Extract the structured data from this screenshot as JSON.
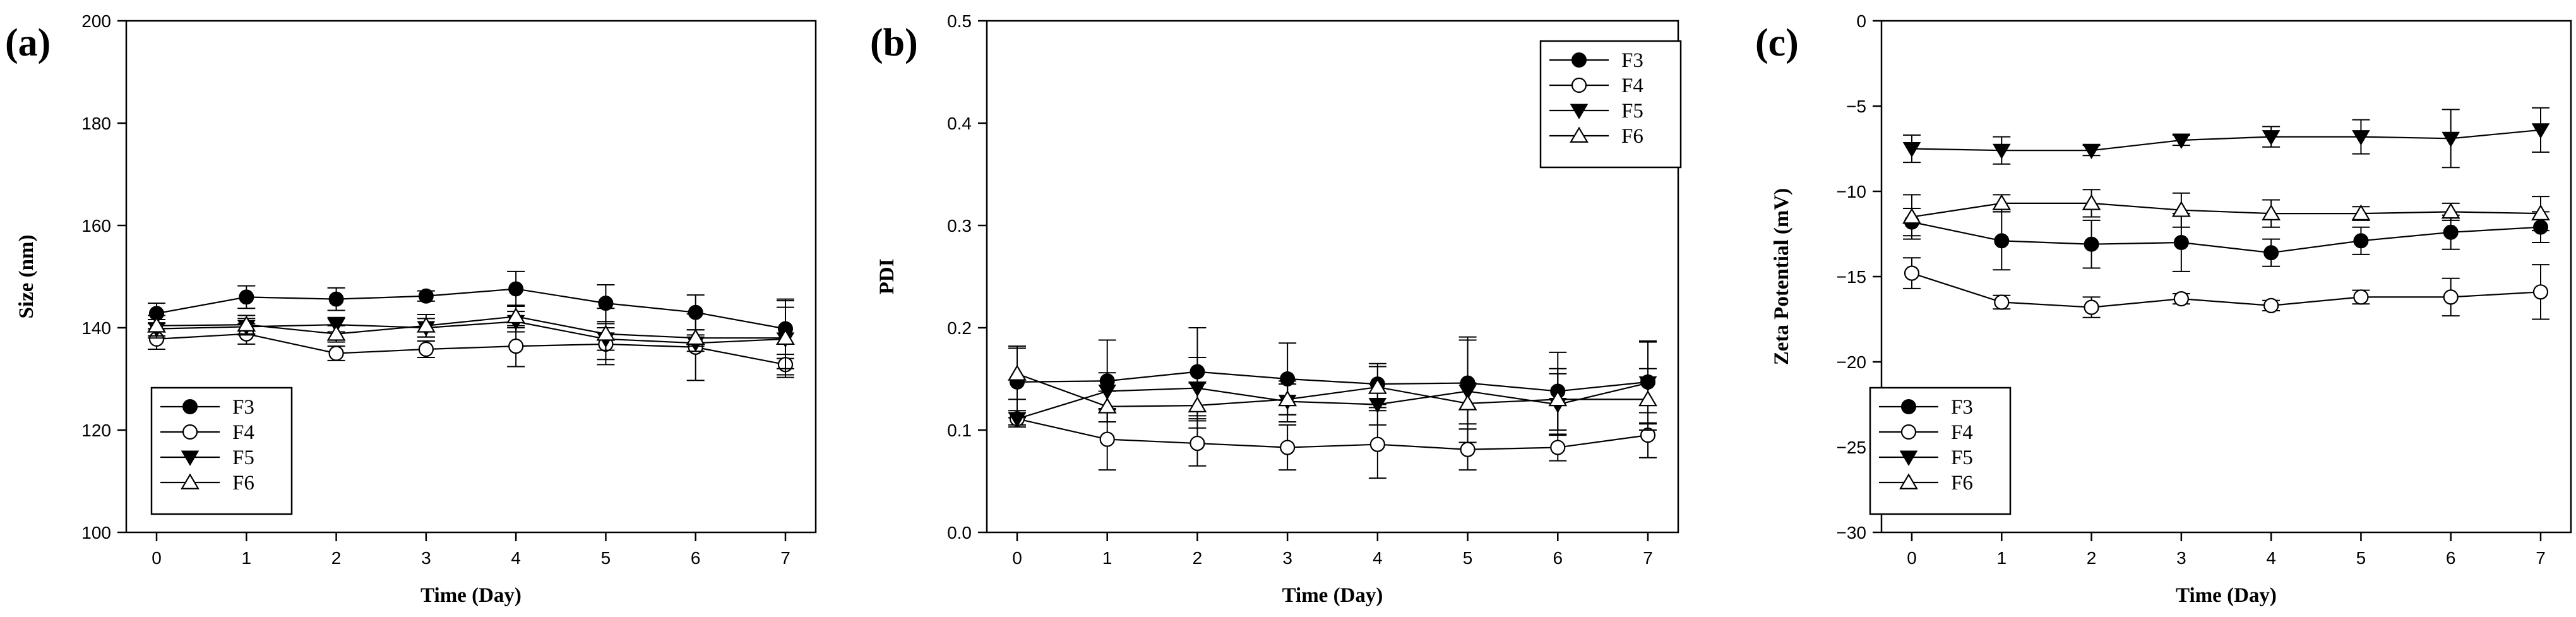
{
  "chart_data": [
    {
      "type": "line",
      "panel_label": "(a)",
      "xlabel": "Time (Day)",
      "ylabel": "Size (nm)",
      "xlim": [
        0,
        7
      ],
      "ylim": [
        100,
        200
      ],
      "x_ticks": [
        0,
        1,
        2,
        3,
        4,
        5,
        6,
        7
      ],
      "y_ticks": [
        100,
        120,
        140,
        160,
        180,
        200
      ],
      "legend_position": "bottom-left",
      "x": [
        0,
        1,
        2,
        3,
        4,
        5,
        6,
        7
      ],
      "series": [
        {
          "name": "F3",
          "marker": "circle-filled",
          "values": [
            142.8,
            146.0,
            145.6,
            146.2,
            147.6,
            144.8,
            143.0,
            139.8
          ],
          "errors": [
            2.0,
            2.2,
            2.2,
            1.0,
            3.4,
            3.6,
            3.4,
            5.8
          ]
        },
        {
          "name": "F4",
          "marker": "circle-open",
          "values": [
            137.8,
            138.8,
            135.0,
            135.8,
            136.4,
            136.8,
            136.2,
            132.8
          ],
          "errors": [
            2.0,
            2.0,
            1.4,
            1.6,
            4.0,
            4.0,
            6.5,
            2.0
          ]
        },
        {
          "name": "F5",
          "marker": "triangle-down",
          "values": [
            139.8,
            140.2,
            140.6,
            140.0,
            141.2,
            137.8,
            137.0,
            137.8
          ],
          "errors": [
            1.8,
            1.6,
            1.4,
            1.8,
            2.0,
            2.2,
            1.6,
            7.5
          ]
        },
        {
          "name": "F6",
          "marker": "triangle-up-open",
          "values": [
            140.4,
            140.6,
            138.8,
            140.4,
            142.2,
            138.8,
            138.0,
            138.0
          ],
          "errors": [
            2.0,
            1.8,
            1.6,
            2.2,
            2.2,
            5.0,
            1.6,
            6.0
          ]
        }
      ]
    },
    {
      "type": "line",
      "panel_label": "(b)",
      "xlabel": "Time (Day)",
      "ylabel": "PDI",
      "xlim": [
        0,
        7
      ],
      "ylim": [
        0.0,
        0.5
      ],
      "x_ticks": [
        0,
        1,
        2,
        3,
        4,
        5,
        6,
        7
      ],
      "y_ticks": [
        "0.0",
        "0.1",
        "0.2",
        "0.3",
        "0.4",
        "0.5"
      ],
      "legend_position": "top-right",
      "x": [
        0,
        1,
        2,
        3,
        4,
        5,
        6,
        7
      ],
      "series": [
        {
          "name": "F3",
          "marker": "circle-filled",
          "values": [
            0.147,
            0.148,
            0.157,
            0.15,
            0.145,
            0.146,
            0.138,
            0.147
          ],
          "errors": [
            0.035,
            0.04,
            0.043,
            0.035,
            0.02,
            0.045,
            0.038,
            0.04
          ]
        },
        {
          "name": "F4",
          "marker": "circle-open",
          "values": [
            0.111,
            0.091,
            0.087,
            0.083,
            0.086,
            0.081,
            0.083,
            0.095
          ],
          "errors": [
            0.006,
            0.03,
            0.022,
            0.022,
            0.033,
            0.02,
            0.013,
            0.022
          ]
        },
        {
          "name": "F5",
          "marker": "triangle-down",
          "values": [
            0.111,
            0.138,
            0.141,
            0.128,
            0.125,
            0.138,
            0.125,
            0.146
          ],
          "errors": [
            0.008,
            0.018,
            0.03,
            0.02,
            0.02,
            0.05,
            0.03,
            0.04
          ]
        },
        {
          "name": "F6",
          "marker": "triangle-up-open",
          "values": [
            0.155,
            0.123,
            0.124,
            0.13,
            0.142,
            0.126,
            0.13,
            0.13
          ],
          "errors": [
            0.025,
            0.015,
            0.022,
            0.015,
            0.02,
            0.02,
            0.03,
            0.03
          ]
        }
      ]
    },
    {
      "type": "line",
      "panel_label": "(c)",
      "xlabel": "Time (Day)",
      "ylabel": "Zeta Potential (mV)",
      "xlim": [
        0,
        7
      ],
      "ylim": [
        -30,
        0
      ],
      "x_ticks": [
        0,
        1,
        2,
        3,
        4,
        5,
        6,
        7
      ],
      "y_ticks": [
        -30,
        -25,
        -20,
        -15,
        -10,
        -5,
        0
      ],
      "y_tick_labels": [
        "−30",
        "−25",
        "−20",
        "−15",
        "−10",
        "−5",
        "0"
      ],
      "legend_position": "bottom-left",
      "x": [
        0,
        1,
        2,
        3,
        4,
        5,
        6,
        7
      ],
      "series": [
        {
          "name": "F3",
          "marker": "circle-filled",
          "values": [
            -11.8,
            -12.9,
            -13.1,
            -13.0,
            -13.6,
            -12.9,
            -12.4,
            -12.1
          ],
          "errors": [
            0.8,
            1.7,
            1.4,
            1.7,
            0.8,
            0.8,
            1.0,
            0.9
          ]
        },
        {
          "name": "F4",
          "marker": "circle-open",
          "values": [
            -14.8,
            -16.5,
            -16.8,
            -16.3,
            -16.7,
            -16.2,
            -16.2,
            -15.9
          ],
          "errors": [
            0.9,
            0.4,
            0.6,
            0.3,
            0.3,
            0.4,
            1.1,
            1.6
          ]
        },
        {
          "name": "F5",
          "marker": "triangle-down",
          "values": [
            -7.5,
            -7.6,
            -7.6,
            -7.0,
            -6.8,
            -6.8,
            -6.9,
            -6.4
          ],
          "errors": [
            0.8,
            0.8,
            0.3,
            0.3,
            0.6,
            1.0,
            1.7,
            1.3
          ]
        },
        {
          "name": "F6",
          "marker": "triangle-up-open",
          "values": [
            -11.5,
            -10.7,
            -10.7,
            -11.1,
            -11.3,
            -11.3,
            -11.2,
            -11.3
          ],
          "errors": [
            1.3,
            0.5,
            0.8,
            1.0,
            0.8,
            0.4,
            0.5,
            1.0
          ]
        }
      ]
    }
  ]
}
